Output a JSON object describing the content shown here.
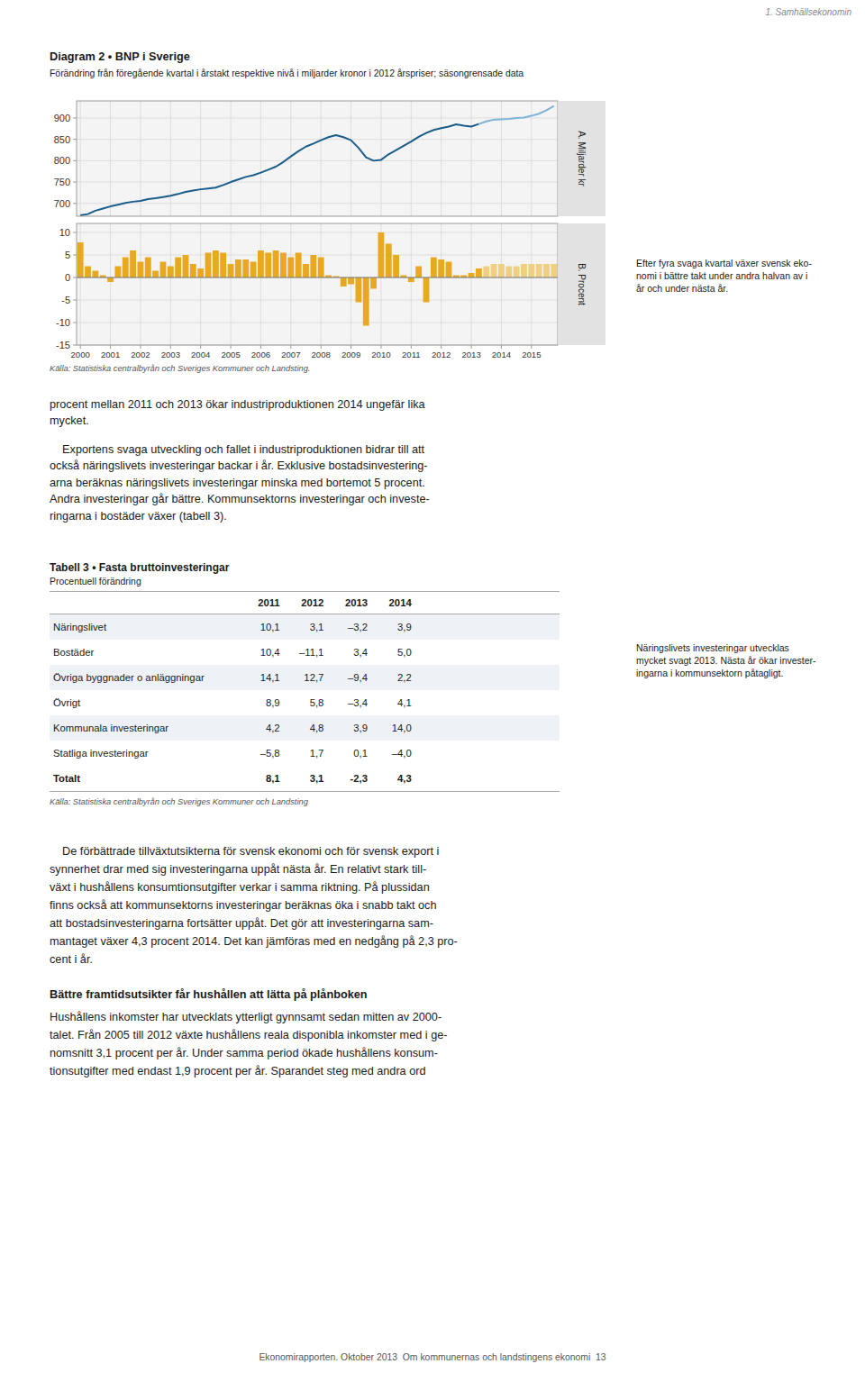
{
  "header": "1. Samhällsekonomin",
  "chart_data": [
    {
      "type": "line",
      "title": "Diagram 2 • BNP i Sverige",
      "subtitle": "Förändring från föregående kvartal i årstakt respektive nivå i miljarder kronor i 2012 årspriser; säsongrensade data",
      "y_label": "A. Miljarder kr",
      "categories": [
        "2000",
        null,
        null,
        null,
        "2001",
        null,
        null,
        null,
        "2002",
        null,
        null,
        null,
        "2003",
        null,
        null,
        null,
        "2004",
        null,
        null,
        null,
        "2005",
        null,
        null,
        null,
        "2006",
        null,
        null,
        null,
        "2007",
        null,
        null,
        null,
        "2008",
        null,
        null,
        null,
        "2009",
        null,
        null,
        null,
        "2010",
        null,
        null,
        null,
        "2011",
        null,
        null,
        null,
        "2012",
        null,
        null,
        null,
        "2013",
        null,
        null,
        null,
        "2014",
        null,
        null,
        null,
        "2015",
        null,
        null,
        null
      ],
      "series": [
        {
          "color": "#1a5c8a",
          "values": [
            672,
            675,
            683,
            688,
            693,
            697,
            701,
            704,
            706,
            710,
            712,
            715,
            718,
            722,
            727,
            730,
            733,
            735,
            737,
            743,
            750,
            756,
            762,
            766,
            772,
            779,
            786,
            797,
            810,
            822,
            833,
            840,
            848,
            855,
            860,
            855,
            848,
            830,
            808,
            800,
            802,
            815,
            825,
            835,
            845,
            856,
            865,
            872,
            876,
            880,
            885,
            882,
            880,
            886,
            null,
            null,
            null,
            null,
            null,
            null,
            null,
            null,
            null,
            null
          ]
        },
        {
          "color": "#7fb3d3",
          "values": [
            null,
            null,
            null,
            null,
            null,
            null,
            null,
            null,
            null,
            null,
            null,
            null,
            null,
            null,
            null,
            null,
            null,
            null,
            null,
            null,
            null,
            null,
            null,
            null,
            null,
            null,
            null,
            null,
            null,
            null,
            null,
            null,
            null,
            null,
            null,
            null,
            null,
            null,
            null,
            null,
            null,
            null,
            null,
            null,
            null,
            null,
            null,
            null,
            null,
            null,
            null,
            null,
            null,
            886,
            892,
            896,
            897,
            898,
            900,
            901,
            905,
            910,
            918,
            928
          ]
        }
      ],
      "ylim": [
        670,
        940
      ],
      "yticks": [
        700,
        750,
        800,
        850,
        900
      ],
      "grid": true,
      "tick_labels": "y"
    },
    {
      "type": "bar",
      "y_label": "B. Procent",
      "categories": [
        "2000",
        null,
        null,
        null,
        "2001",
        null,
        null,
        null,
        "2002",
        null,
        null,
        null,
        "2003",
        null,
        null,
        null,
        "2004",
        null,
        null,
        null,
        "2005",
        null,
        null,
        null,
        "2006",
        null,
        null,
        null,
        "2007",
        null,
        null,
        null,
        "2008",
        null,
        null,
        null,
        "2009",
        null,
        null,
        null,
        "2010",
        null,
        null,
        null,
        "2011",
        null,
        null,
        null,
        "2012",
        null,
        null,
        null,
        "2013",
        null,
        null,
        null,
        "2014",
        null,
        null,
        null,
        "2015",
        null,
        null,
        null
      ],
      "series": [
        {
          "color": "#e8a820",
          "values": [
            7.8,
            2.5,
            1.5,
            0.5,
            -1.0,
            2.5,
            4.5,
            6.0,
            3.5,
            4.5,
            1.5,
            3.5,
            2.5,
            4.5,
            5.0,
            3.0,
            2.0,
            5.5,
            6.0,
            5.5,
            3.0,
            4.0,
            4.0,
            3.5,
            6.0,
            5.5,
            6.0,
            5.5,
            4.5,
            5.5,
            3.0,
            5.0,
            4.5,
            0.5,
            0.3,
            -2.0,
            -1.5,
            -5.5,
            -10.7,
            -2.5,
            10.0,
            7.5,
            5.0,
            0.5,
            -1.0,
            2.5,
            -5.5,
            4.5,
            4.0,
            3.5,
            0.5,
            0.5,
            1.0,
            2.0,
            null,
            null,
            null,
            null,
            null,
            null,
            null,
            null,
            null,
            null
          ]
        },
        {
          "color": "#f0d080",
          "values": [
            null,
            null,
            null,
            null,
            null,
            null,
            null,
            null,
            null,
            null,
            null,
            null,
            null,
            null,
            null,
            null,
            null,
            null,
            null,
            null,
            null,
            null,
            null,
            null,
            null,
            null,
            null,
            null,
            null,
            null,
            null,
            null,
            null,
            null,
            null,
            null,
            null,
            null,
            null,
            null,
            null,
            null,
            null,
            null,
            null,
            null,
            null,
            null,
            null,
            null,
            null,
            null,
            null,
            null,
            2.5,
            3.0,
            3.0,
            2.5,
            2.5,
            3.0,
            3.0,
            3.0,
            3.0,
            3.0
          ]
        }
      ],
      "ylim": [
        -15,
        12
      ],
      "yticks": [
        -15,
        -10,
        -5,
        0,
        5,
        10
      ],
      "grid": true
    }
  ],
  "chart_source": "Källa: Statistiska centralbyrån och Sveriges Kommuner och Landsting.",
  "chart_note": "Efter fyra svaga kvartal växer svensk eko-\nnomi i bättre takt under andra halvan av i\når och under nästa år.",
  "paragraphs_before": [
    "procent mellan 2011 och 2013 ökar industriproduktionen 2014 ungefär lika\nmycket.",
    "    Exportens svaga utveckling och fallet i industriproduktionen bidrar till att\nockså näringslivets investeringar backar i år. Exklusive bostadsinvestering-\narna beräknas näringslivets investeringar minska med bortemot 5 procent.\nAndra investeringar går bättre. Kommunsektorns investeringar och investe-\nringarna i bostäder växer (tabell 3)."
  ],
  "table": {
    "title": "Tabell 3 • Fasta bruttoinvesteringar",
    "subtitle": "Procentuell förändring",
    "headers": [
      "2011",
      "2012",
      "2013",
      "2014"
    ],
    "rows": [
      {
        "label": "Näringslivet",
        "values": [
          "10,1",
          "3,1",
          "–3,2",
          "3,9"
        ]
      },
      {
        "label": "Bostäder",
        "values": [
          "10,4",
          "–11,1",
          "3,4",
          "5,0"
        ]
      },
      {
        "label": "Övriga byggnader o anläggningar",
        "values": [
          "14,1",
          "12,7",
          "–9,4",
          "2,2"
        ]
      },
      {
        "label": "Övrigt",
        "values": [
          "8,9",
          "5,8",
          "–3,4",
          "4,1"
        ]
      },
      {
        "label": "Kommunala investeringar",
        "values": [
          "4,2",
          "4,8",
          "3,9",
          "14,0"
        ]
      },
      {
        "label": "Statliga investeringar",
        "values": [
          "–5,8",
          "1,7",
          "0,1",
          "–4,0"
        ]
      }
    ],
    "total": {
      "label": "Totalt",
      "values": [
        "8,1",
        "3,1",
        "-2,3",
        "4,3"
      ]
    },
    "source": "Källa: Statistiska centralbyrån och Sveriges Kommuner och Landsting"
  },
  "table_note": "Näringslivets investeringar utvecklas\nmycket svagt 2013. Nästa år ökar invester-\ningarna i kommunsektorn påtagligt.",
  "paragraph_after": "    De förbättrade tillväxtutsikterna för svensk ekonomi och för svensk export i\nsynnerhet drar med sig investeringarna uppåt nästa år. En relativt stark till-\nväxt i hushållens konsumtionsutgifter verkar i samma riktning. På plussidan\nfinns också att kommunsektorns investeringar beräknas öka i snabb takt och\natt bostadsinvesteringarna fortsätter uppåt. Det gör att investeringarna sam-\nmantaget växer 4,3 procent 2014. Det kan jämföras med en nedgång på 2,3 pro-\ncent i år.",
  "heading": "Bättre framtidsutsikter får hushållen att lätta på plånboken",
  "paragraph_last": "Hushållens inkomster har utvecklats ytterligt gynnsamt sedan mitten av 2000-\ntalet. Från 2005 till 2012 växte hushållens reala disponibla inkomster med i ge-\nnomsnitt 3,1 procent per år. Under samma period ökade hushållens konsum-\ntionsutgifter med endast 1,9 procent per år. Sparandet steg med andra ord",
  "footer": "Ekonomirapporten. Oktober 2013  Om kommunernas och landstingens ekonomi  13"
}
